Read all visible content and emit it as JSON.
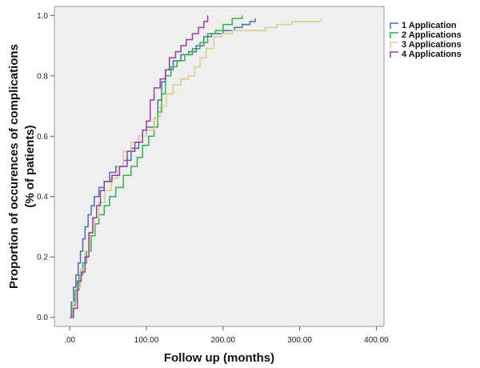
{
  "chart_data": {
    "type": "line",
    "step": true,
    "xlabel": "Follow up (months)",
    "ylabel_line1": "Proportion of occurences of complications",
    "ylabel_line2": "(% of patients)",
    "xlim": [
      -20,
      410
    ],
    "ylim": [
      -0.03,
      1.03
    ],
    "x_ticks": [
      0,
      100,
      200,
      300,
      400
    ],
    "x_tick_labels": [
      ".00",
      "100.00",
      "200.00",
      "300.00",
      "400.00"
    ],
    "y_ticks": [
      0,
      0.2,
      0.4,
      0.6,
      0.8,
      1.0
    ],
    "y_tick_labels": [
      "0.0",
      "0.2",
      "0.4",
      "0.6",
      "0.8",
      "1.0"
    ],
    "grid": false,
    "legend_position": "right",
    "background_color": "#efefef",
    "series": [
      {
        "name": "1 Application",
        "color": "#4a6fb5",
        "points": [
          [
            0,
            0
          ],
          [
            2,
            0.05
          ],
          [
            5,
            0.1
          ],
          [
            8,
            0.14
          ],
          [
            11,
            0.18
          ],
          [
            14,
            0.22
          ],
          [
            17,
            0.26
          ],
          [
            20,
            0.3
          ],
          [
            24,
            0.34
          ],
          [
            28,
            0.37
          ],
          [
            32,
            0.4
          ],
          [
            38,
            0.43
          ],
          [
            45,
            0.45
          ],
          [
            52,
            0.48
          ],
          [
            60,
            0.5
          ],
          [
            70,
            0.52
          ],
          [
            80,
            0.56
          ],
          [
            90,
            0.6
          ],
          [
            100,
            0.63
          ],
          [
            110,
            0.66
          ],
          [
            115,
            0.72
          ],
          [
            120,
            0.78
          ],
          [
            125,
            0.82
          ],
          [
            135,
            0.85
          ],
          [
            145,
            0.87
          ],
          [
            155,
            0.88
          ],
          [
            165,
            0.9
          ],
          [
            175,
            0.93
          ],
          [
            185,
            0.94
          ],
          [
            200,
            0.95
          ],
          [
            215,
            0.96
          ],
          [
            225,
            0.97
          ],
          [
            235,
            0.98
          ],
          [
            242,
            0.99
          ]
        ]
      },
      {
        "name": "2 Applications",
        "color": "#2fb24a",
        "points": [
          [
            0,
            0
          ],
          [
            3,
            0.04
          ],
          [
            7,
            0.09
          ],
          [
            12,
            0.14
          ],
          [
            17,
            0.18
          ],
          [
            22,
            0.22
          ],
          [
            28,
            0.27
          ],
          [
            33,
            0.31
          ],
          [
            38,
            0.34
          ],
          [
            45,
            0.37
          ],
          [
            52,
            0.4
          ],
          [
            60,
            0.43
          ],
          [
            70,
            0.47
          ],
          [
            80,
            0.5
          ],
          [
            88,
            0.53
          ],
          [
            95,
            0.57
          ],
          [
            103,
            0.6
          ],
          [
            110,
            0.63
          ],
          [
            115,
            0.68
          ],
          [
            120,
            0.74
          ],
          [
            125,
            0.8
          ],
          [
            132,
            0.83
          ],
          [
            140,
            0.85
          ],
          [
            150,
            0.87
          ],
          [
            160,
            0.89
          ],
          [
            170,
            0.91
          ],
          [
            180,
            0.94
          ],
          [
            190,
            0.95
          ],
          [
            200,
            0.97
          ],
          [
            212,
            0.99
          ],
          [
            225,
            1.0
          ]
        ]
      },
      {
        "name": "3 Applications",
        "color": "#d8cd8e",
        "points": [
          [
            0,
            0
          ],
          [
            4,
            0.05
          ],
          [
            9,
            0.1
          ],
          [
            14,
            0.16
          ],
          [
            20,
            0.22
          ],
          [
            26,
            0.28
          ],
          [
            32,
            0.33
          ],
          [
            38,
            0.38
          ],
          [
            46,
            0.42
          ],
          [
            54,
            0.46
          ],
          [
            62,
            0.5
          ],
          [
            70,
            0.55
          ],
          [
            80,
            0.58
          ],
          [
            90,
            0.6
          ],
          [
            100,
            0.62
          ],
          [
            110,
            0.66
          ],
          [
            118,
            0.7
          ],
          [
            126,
            0.74
          ],
          [
            135,
            0.77
          ],
          [
            145,
            0.79
          ],
          [
            155,
            0.8
          ],
          [
            163,
            0.83
          ],
          [
            170,
            0.86
          ],
          [
            178,
            0.89
          ],
          [
            188,
            0.93
          ],
          [
            198,
            0.94
          ],
          [
            212,
            0.95
          ],
          [
            228,
            0.95
          ],
          [
            240,
            0.95
          ],
          [
            255,
            0.96
          ],
          [
            270,
            0.97
          ],
          [
            290,
            0.98
          ],
          [
            310,
            0.98
          ],
          [
            328,
            0.99
          ]
        ]
      },
      {
        "name": "4 Applications",
        "color": "#9a3da3",
        "points": [
          [
            0,
            0
          ],
          [
            5,
            0.03
          ],
          [
            10,
            0.12
          ],
          [
            15,
            0.15
          ],
          [
            20,
            0.2
          ],
          [
            25,
            0.28
          ],
          [
            30,
            0.33
          ],
          [
            35,
            0.37
          ],
          [
            40,
            0.42
          ],
          [
            45,
            0.45
          ],
          [
            55,
            0.47
          ],
          [
            65,
            0.5
          ],
          [
            75,
            0.55
          ],
          [
            85,
            0.58
          ],
          [
            95,
            0.62
          ],
          [
            100,
            0.65
          ],
          [
            105,
            0.72
          ],
          [
            110,
            0.76
          ],
          [
            118,
            0.79
          ],
          [
            125,
            0.82
          ],
          [
            130,
            0.86
          ],
          [
            138,
            0.88
          ],
          [
            145,
            0.9
          ],
          [
            152,
            0.92
          ],
          [
            160,
            0.94
          ],
          [
            168,
            0.96
          ],
          [
            175,
            0.98
          ],
          [
            180,
            1.0
          ]
        ]
      }
    ]
  }
}
